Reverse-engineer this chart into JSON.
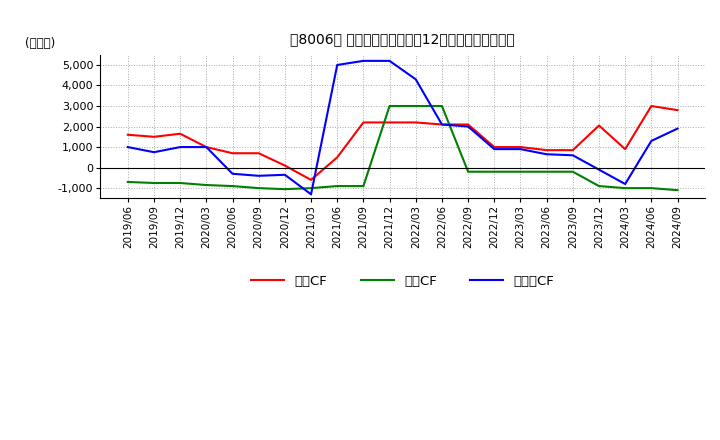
{
  "title": "［8006］ キャッシュフローの12か月移動合計の推移",
  "ylabel": "(百万円)",
  "ylim": [
    -1500,
    5500
  ],
  "yticks": [
    -1000,
    0,
    1000,
    2000,
    3000,
    4000,
    5000
  ],
  "x_labels": [
    "2019/06",
    "2019/09",
    "2019/12",
    "2020/03",
    "2020/06",
    "2020/09",
    "2020/12",
    "2021/03",
    "2021/06",
    "2021/09",
    "2021/12",
    "2022/03",
    "2022/06",
    "2022/09",
    "2022/12",
    "2023/03",
    "2023/06",
    "2023/09",
    "2023/12",
    "2024/03",
    "2024/06",
    "2024/09"
  ],
  "eigyo_cf": [
    1600,
    1500,
    1650,
    1000,
    700,
    700,
    100,
    -600,
    500,
    2200,
    2200,
    2200,
    2100,
    2100,
    1000,
    1000,
    850,
    850,
    2050,
    900,
    3000,
    2800
  ],
  "toshi_cf": [
    -700,
    -750,
    -750,
    -850,
    -900,
    -1000,
    -1050,
    -1000,
    -900,
    -900,
    3000,
    3000,
    3000,
    -200,
    -200,
    -200,
    -200,
    -200,
    -900,
    -1000,
    -1000,
    -1100
  ],
  "free_cf": [
    1000,
    750,
    1000,
    1000,
    -300,
    -400,
    -350,
    -1300,
    5000,
    5200,
    5200,
    4300,
    2100,
    2000,
    900,
    900,
    650,
    600,
    -100,
    -800,
    1300,
    1900
  ],
  "eigyo_color": "#ff0000",
  "toshi_color": "#008000",
  "free_color": "#0000ff",
  "background_color": "#ffffff",
  "grid_color": "#aaaaaa"
}
